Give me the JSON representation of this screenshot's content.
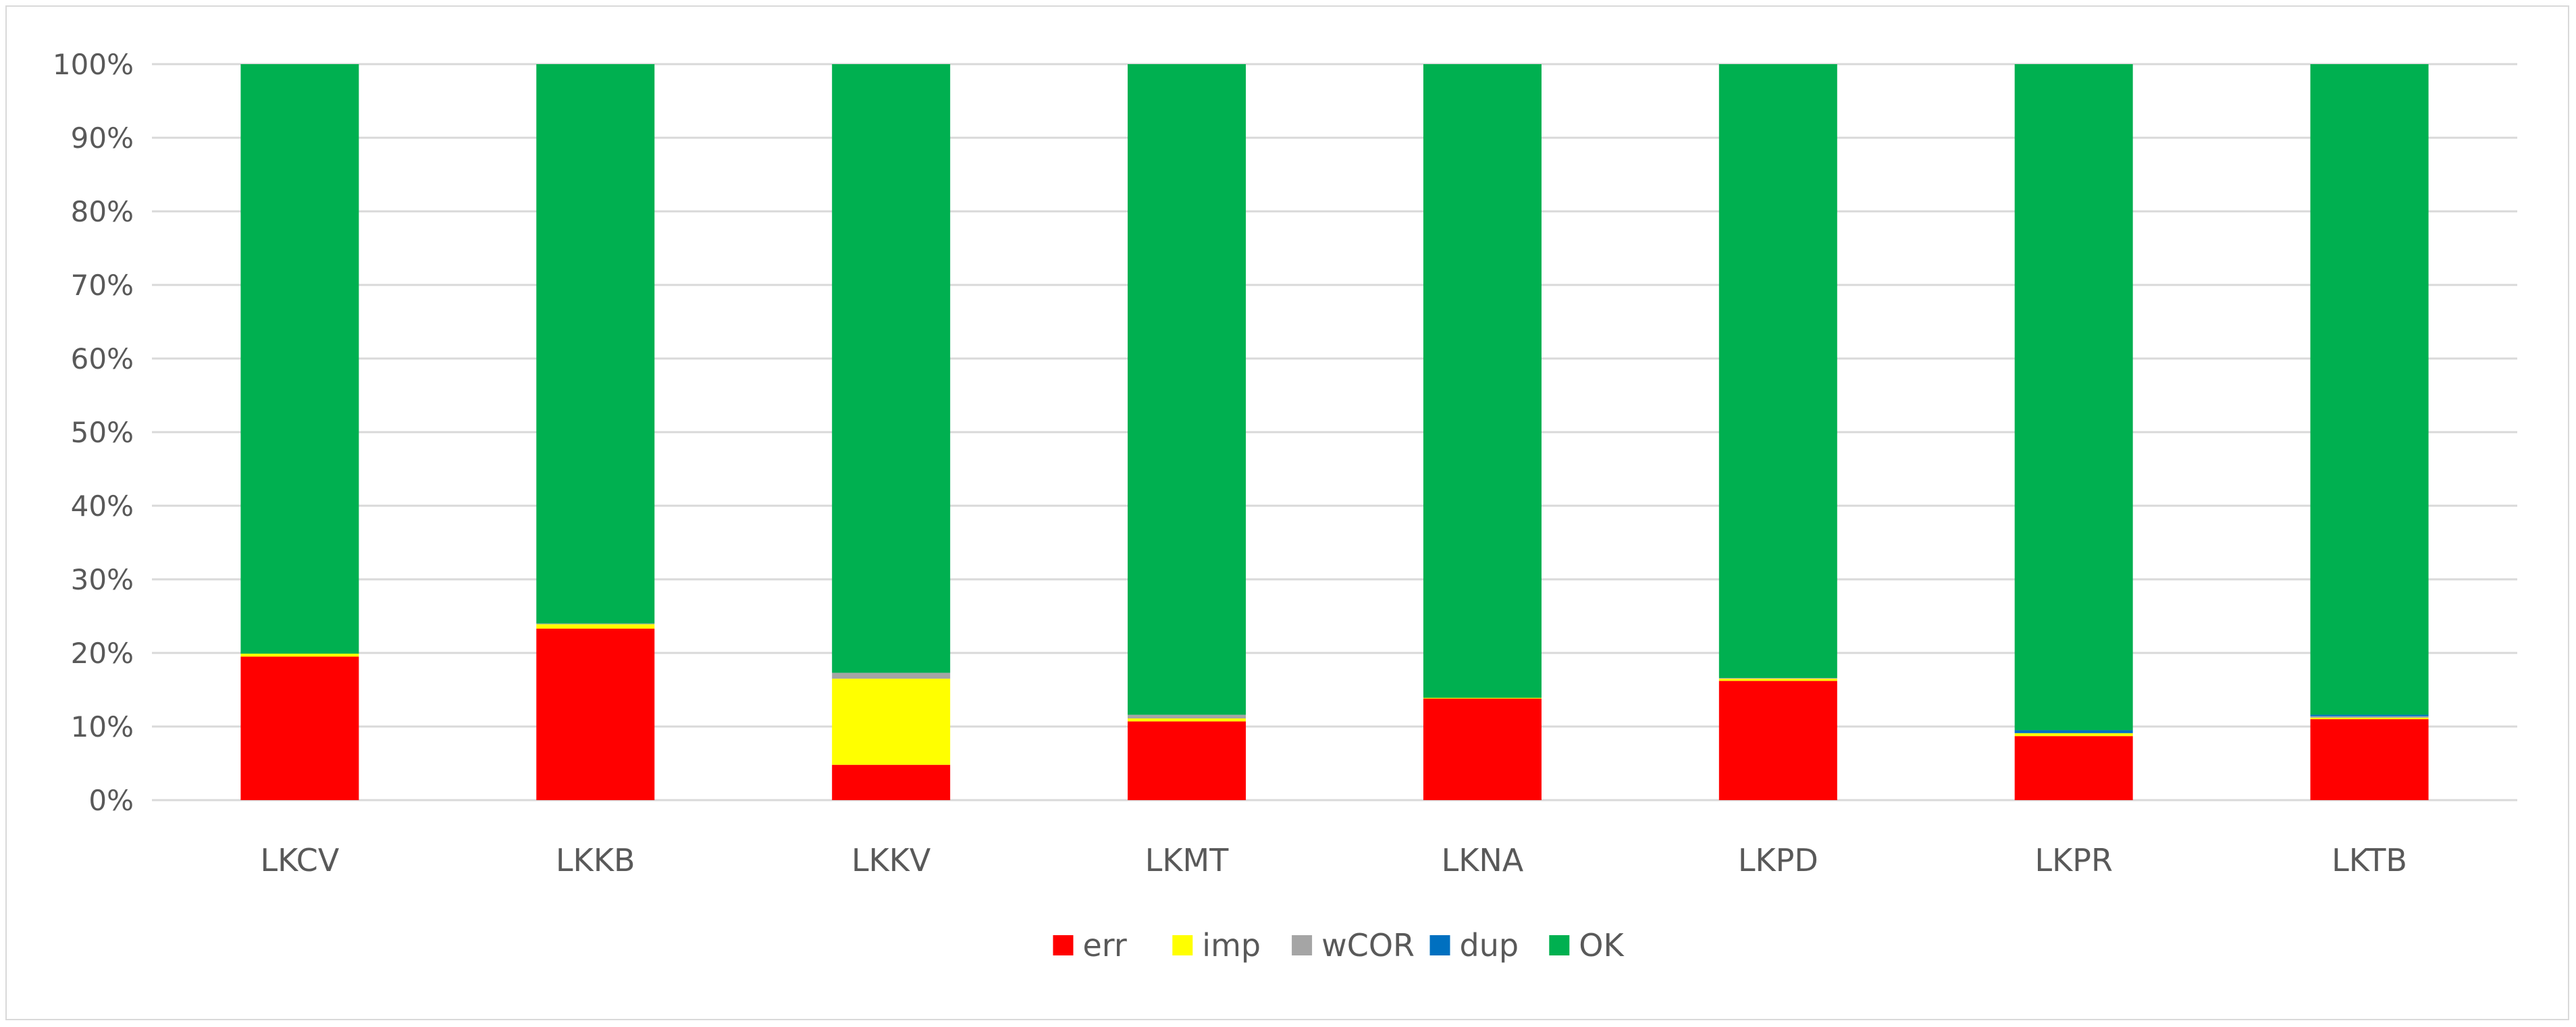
{
  "chart_data": {
    "type": "bar",
    "stacked": true,
    "normalized": true,
    "categories": [
      "LKCV",
      "LKKB",
      "LKKV",
      "LKMT",
      "LKNA",
      "LKPD",
      "LKPR",
      "LKTB"
    ],
    "series": [
      {
        "name": "err",
        "color": "#ff0000",
        "values": [
          19.5,
          23.3,
          4.8,
          10.7,
          13.8,
          16.2,
          8.7,
          11.0
        ]
      },
      {
        "name": "imp",
        "color": "#ffff00",
        "values": [
          0.4,
          0.6,
          11.7,
          0.4,
          0.1,
          0.3,
          0.4,
          0.2
        ]
      },
      {
        "name": "wCOR",
        "color": "#a5a5a5",
        "values": [
          0.0,
          0.1,
          0.8,
          0.5,
          0.0,
          0.1,
          0.0,
          0.2
        ]
      },
      {
        "name": "dup",
        "color": "#0070c0",
        "values": [
          0.0,
          0.0,
          0.0,
          0.0,
          0.0,
          0.0,
          0.4,
          0.2
        ]
      },
      {
        "name": "OK",
        "color": "#00b050",
        "values": [
          80.1,
          76.0,
          82.7,
          88.4,
          86.1,
          83.4,
          90.5,
          88.4
        ]
      }
    ],
    "yticks": [
      "0%",
      "10%",
      "20%",
      "30%",
      "40%",
      "50%",
      "60%",
      "70%",
      "80%",
      "90%",
      "100%"
    ],
    "ylim": [
      0,
      100
    ],
    "grid": true,
    "legend_position": "bottom",
    "gridline_color": "#d9d9d9",
    "text_color": "#595959"
  }
}
